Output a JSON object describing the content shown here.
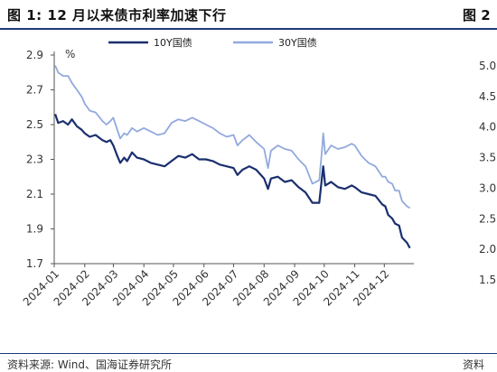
{
  "header": {
    "title": "图 1:  12 月以来债市利率加速下行",
    "title_right_clip": "图 2"
  },
  "footer": {
    "source": "资料来源:  Wind、国海证券研究所",
    "source_right_clip": "资料"
  },
  "right_panel_clip": {
    "ytick_labels": [
      "5.0",
      "4.5",
      "4.0",
      "3.5",
      "3.0",
      "2.5",
      "2.0",
      "1.5"
    ]
  },
  "chart_data": {
    "type": "line",
    "unit_label": "%",
    "ylim": [
      1.7,
      2.9
    ],
    "yticks": [
      "2.9",
      "2.7",
      "2.5",
      "2.3",
      "2.1",
      "1.9",
      "1.7"
    ],
    "xlim": [
      "2024-01-01",
      "2024-12-31"
    ],
    "xticks": [
      "2024-01",
      "2024-02",
      "2024-03",
      "2024-04",
      "2024-05",
      "2024-06",
      "2024-07",
      "2024-08",
      "2024-09",
      "2024-10",
      "2024-11",
      "2024-12"
    ],
    "legend_position": "top",
    "grid": false,
    "series": [
      {
        "name": "10Y国债",
        "color": "#1a2f6e",
        "points": [
          [
            "2024-01-02",
            2.56
          ],
          [
            "2024-01-05",
            2.51
          ],
          [
            "2024-01-10",
            2.52
          ],
          [
            "2024-01-15",
            2.5
          ],
          [
            "2024-01-19",
            2.53
          ],
          [
            "2024-01-24",
            2.49
          ],
          [
            "2024-01-29",
            2.47
          ],
          [
            "2024-02-01",
            2.45
          ],
          [
            "2024-02-06",
            2.43
          ],
          [
            "2024-02-12",
            2.44
          ],
          [
            "2024-02-19",
            2.41
          ],
          [
            "2024-02-23",
            2.4
          ],
          [
            "2024-02-27",
            2.41
          ],
          [
            "2024-03-01",
            2.38
          ],
          [
            "2024-03-05",
            2.32
          ],
          [
            "2024-03-08",
            2.28
          ],
          [
            "2024-03-12",
            2.31
          ],
          [
            "2024-03-15",
            2.29
          ],
          [
            "2024-03-20",
            2.34
          ],
          [
            "2024-03-25",
            2.31
          ],
          [
            "2024-04-01",
            2.3
          ],
          [
            "2024-04-08",
            2.28
          ],
          [
            "2024-04-15",
            2.27
          ],
          [
            "2024-04-22",
            2.26
          ],
          [
            "2024-04-29",
            2.29
          ],
          [
            "2024-05-06",
            2.32
          ],
          [
            "2024-05-13",
            2.31
          ],
          [
            "2024-05-20",
            2.33
          ],
          [
            "2024-05-27",
            2.3
          ],
          [
            "2024-06-03",
            2.3
          ],
          [
            "2024-06-10",
            2.29
          ],
          [
            "2024-06-17",
            2.27
          ],
          [
            "2024-06-24",
            2.26
          ],
          [
            "2024-07-01",
            2.25
          ],
          [
            "2024-07-05",
            2.21
          ],
          [
            "2024-07-10",
            2.24
          ],
          [
            "2024-07-17",
            2.26
          ],
          [
            "2024-07-24",
            2.24
          ],
          [
            "2024-08-01",
            2.19
          ],
          [
            "2024-08-05",
            2.13
          ],
          [
            "2024-08-08",
            2.19
          ],
          [
            "2024-08-15",
            2.2
          ],
          [
            "2024-08-22",
            2.17
          ],
          [
            "2024-08-29",
            2.18
          ],
          [
            "2024-09-05",
            2.14
          ],
          [
            "2024-09-12",
            2.11
          ],
          [
            "2024-09-19",
            2.05
          ],
          [
            "2024-09-26",
            2.05
          ],
          [
            "2024-09-29",
            2.21
          ],
          [
            "2024-09-30",
            2.26
          ],
          [
            "2024-10-02",
            2.15
          ],
          [
            "2024-10-08",
            2.17
          ],
          [
            "2024-10-15",
            2.14
          ],
          [
            "2024-10-22",
            2.13
          ],
          [
            "2024-10-29",
            2.15
          ],
          [
            "2024-11-01",
            2.14
          ],
          [
            "2024-11-08",
            2.11
          ],
          [
            "2024-11-15",
            2.1
          ],
          [
            "2024-11-22",
            2.09
          ],
          [
            "2024-11-29",
            2.04
          ],
          [
            "2024-12-02",
            2.03
          ],
          [
            "2024-12-05",
            1.98
          ],
          [
            "2024-12-09",
            1.96
          ],
          [
            "2024-12-12",
            1.93
          ],
          [
            "2024-12-16",
            1.92
          ],
          [
            "2024-12-19",
            1.85
          ],
          [
            "2024-12-24",
            1.82
          ],
          [
            "2024-12-27",
            1.79
          ]
        ]
      },
      {
        "name": "30Y国债",
        "color": "#92a9dd",
        "points": [
          [
            "2024-01-02",
            2.84
          ],
          [
            "2024-01-05",
            2.8
          ],
          [
            "2024-01-10",
            2.78
          ],
          [
            "2024-01-15",
            2.78
          ],
          [
            "2024-01-19",
            2.74
          ],
          [
            "2024-01-24",
            2.7
          ],
          [
            "2024-01-29",
            2.66
          ],
          [
            "2024-02-01",
            2.62
          ],
          [
            "2024-02-06",
            2.58
          ],
          [
            "2024-02-12",
            2.57
          ],
          [
            "2024-02-19",
            2.52
          ],
          [
            "2024-02-23",
            2.5
          ],
          [
            "2024-02-27",
            2.52
          ],
          [
            "2024-03-01",
            2.54
          ],
          [
            "2024-03-05",
            2.47
          ],
          [
            "2024-03-08",
            2.42
          ],
          [
            "2024-03-12",
            2.45
          ],
          [
            "2024-03-15",
            2.44
          ],
          [
            "2024-03-20",
            2.48
          ],
          [
            "2024-03-25",
            2.46
          ],
          [
            "2024-04-01",
            2.48
          ],
          [
            "2024-04-08",
            2.46
          ],
          [
            "2024-04-15",
            2.44
          ],
          [
            "2024-04-22",
            2.45
          ],
          [
            "2024-04-29",
            2.51
          ],
          [
            "2024-05-06",
            2.53
          ],
          [
            "2024-05-13",
            2.52
          ],
          [
            "2024-05-20",
            2.54
          ],
          [
            "2024-05-27",
            2.52
          ],
          [
            "2024-06-03",
            2.5
          ],
          [
            "2024-06-10",
            2.48
          ],
          [
            "2024-06-17",
            2.45
          ],
          [
            "2024-06-24",
            2.43
          ],
          [
            "2024-07-01",
            2.44
          ],
          [
            "2024-07-05",
            2.38
          ],
          [
            "2024-07-10",
            2.41
          ],
          [
            "2024-07-17",
            2.44
          ],
          [
            "2024-07-24",
            2.4
          ],
          [
            "2024-08-01",
            2.36
          ],
          [
            "2024-08-05",
            2.25
          ],
          [
            "2024-08-08",
            2.35
          ],
          [
            "2024-08-15",
            2.38
          ],
          [
            "2024-08-22",
            2.36
          ],
          [
            "2024-08-29",
            2.35
          ],
          [
            "2024-09-05",
            2.3
          ],
          [
            "2024-09-12",
            2.26
          ],
          [
            "2024-09-19",
            2.16
          ],
          [
            "2024-09-26",
            2.18
          ],
          [
            "2024-09-29",
            2.37
          ],
          [
            "2024-09-30",
            2.45
          ],
          [
            "2024-10-02",
            2.33
          ],
          [
            "2024-10-08",
            2.38
          ],
          [
            "2024-10-15",
            2.36
          ],
          [
            "2024-10-22",
            2.37
          ],
          [
            "2024-10-29",
            2.39
          ],
          [
            "2024-11-01",
            2.38
          ],
          [
            "2024-11-08",
            2.32
          ],
          [
            "2024-11-15",
            2.28
          ],
          [
            "2024-11-22",
            2.26
          ],
          [
            "2024-11-29",
            2.2
          ],
          [
            "2024-12-02",
            2.2
          ],
          [
            "2024-12-05",
            2.17
          ],
          [
            "2024-12-09",
            2.16
          ],
          [
            "2024-12-12",
            2.12
          ],
          [
            "2024-12-16",
            2.12
          ],
          [
            "2024-12-19",
            2.06
          ],
          [
            "2024-12-24",
            2.03
          ],
          [
            "2024-12-27",
            2.02
          ]
        ]
      }
    ]
  }
}
